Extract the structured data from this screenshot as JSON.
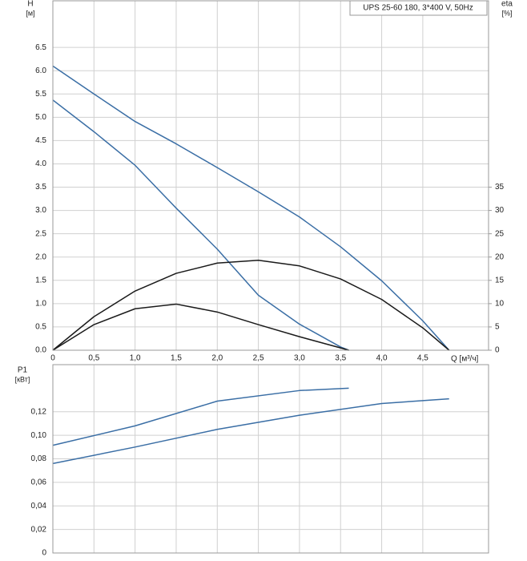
{
  "chart_data": [
    {
      "type": "line",
      "title": "UPS 25-60 180, 3*400 V, 50Hz",
      "y_label": "H",
      "y_unit": "[м]",
      "y2_label": "eta",
      "y2_unit": "[%]",
      "x_label": "Q [м³/ч]",
      "xlim": [
        0,
        5.3
      ],
      "xticks": [
        0,
        {
          "value": 0.5,
          "label": "0,5"
        },
        {
          "value": 1,
          "label": "1,0"
        },
        {
          "value": 1.5,
          "label": "1,5"
        },
        {
          "value": 2,
          "label": "2,0"
        },
        {
          "value": 2.5,
          "label": "2,5"
        },
        {
          "value": 3,
          "label": "3,0"
        },
        {
          "value": 3.5,
          "label": "3,5"
        },
        {
          "value": 4,
          "label": "4,0"
        },
        {
          "value": 4.5,
          "label": "4,5"
        }
      ],
      "ylim": [
        0,
        7.5
      ],
      "yticks": [
        {
          "value": 0,
          "label": "0.0"
        },
        0.5,
        {
          "value": 1,
          "label": "1.0"
        },
        1.5,
        {
          "value": 2,
          "label": "2.0"
        },
        2.5,
        {
          "value": 3,
          "label": "3.0"
        },
        3.5,
        {
          "value": 4,
          "label": "4.0"
        },
        4.5,
        {
          "value": 5,
          "label": "5.0"
        },
        5.5,
        {
          "value": 6,
          "label": "6.0"
        },
        6.5
      ],
      "y2lim": [
        0,
        75
      ],
      "y2ticks": [
        0,
        5,
        10,
        15,
        20,
        25,
        30,
        35
      ],
      "grid": true,
      "series": [
        {
          "color": "#3a6ea5",
          "x": [
            0,
            0.5,
            1,
            1.5,
            2,
            2.5,
            3,
            3.5,
            4,
            4.5,
            4.82
          ],
          "values": [
            6.1,
            5.5,
            4.91,
            4.43,
            3.92,
            3.4,
            2.86,
            2.22,
            1.49,
            0.63,
            0
          ]
        },
        {
          "color": "#3a6ea5",
          "x": [
            0,
            0.5,
            1,
            1.5,
            2,
            2.5,
            3,
            3.5,
            3.6
          ],
          "values": [
            5.37,
            4.69,
            3.97,
            3.05,
            2.17,
            1.18,
            0.56,
            0.07,
            0
          ]
        },
        {
          "color": "#1a1a1a",
          "axis": "y2",
          "x": [
            0,
            0.5,
            1,
            1.5,
            2,
            2.5,
            3,
            3.5,
            4,
            4.5,
            4.82
          ],
          "values": [
            0,
            7.2,
            12.7,
            16.5,
            18.7,
            19.3,
            18.1,
            15.3,
            10.9,
            4.8,
            0
          ]
        },
        {
          "color": "#1a1a1a",
          "axis": "y2",
          "x": [
            0,
            0.5,
            1,
            1.5,
            2,
            2.5,
            3,
            3.5,
            3.6
          ],
          "values": [
            0,
            5.5,
            8.9,
            9.9,
            8.2,
            5.5,
            2.9,
            0.5,
            0
          ]
        }
      ]
    },
    {
      "type": "line",
      "y_label": "P1",
      "y_unit": "[кВт]",
      "xlim": [
        0,
        5.3
      ],
      "ylim": [
        0,
        0.16
      ],
      "yticks": [
        0,
        {
          "value": 0.02,
          "label": "0,02"
        },
        {
          "value": 0.04,
          "label": "0,04"
        },
        {
          "value": 0.06,
          "label": "0,06"
        },
        {
          "value": 0.08,
          "label": "0,08"
        },
        {
          "value": 0.1,
          "label": "0,10"
        },
        {
          "value": 0.12,
          "label": "0,12"
        }
      ],
      "grid": true,
      "series": [
        {
          "color": "#3a6ea5",
          "x": [
            0,
            1,
            2,
            3,
            3.6
          ],
          "values": [
            0.0915,
            0.108,
            0.129,
            0.138,
            0.14
          ]
        },
        {
          "color": "#3a6ea5",
          "x": [
            0,
            1,
            2,
            3,
            4,
            4.82
          ],
          "values": [
            0.076,
            0.09,
            0.105,
            0.117,
            0.127,
            0.131
          ]
        }
      ]
    }
  ]
}
